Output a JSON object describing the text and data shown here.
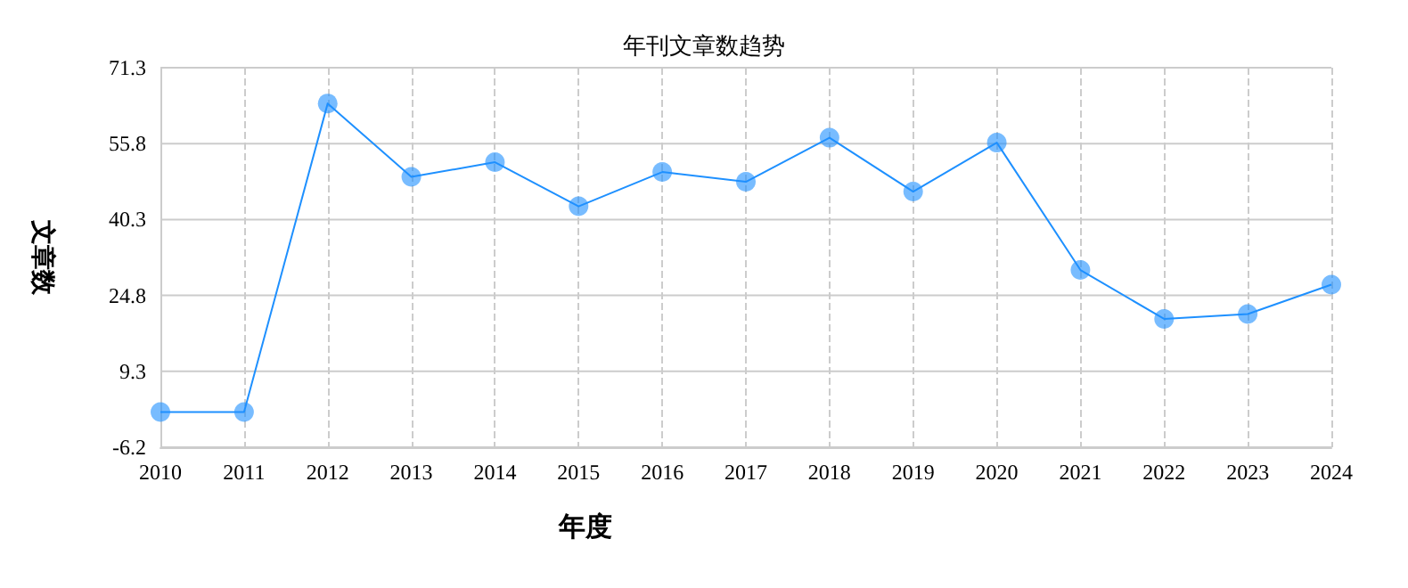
{
  "chart_data": {
    "type": "line",
    "title": "年刊文章数趋势",
    "xlabel": "年度",
    "ylabel": "文章数",
    "categories": [
      "2010",
      "2011",
      "2012",
      "2013",
      "2014",
      "2015",
      "2016",
      "2017",
      "2018",
      "2019",
      "2020",
      "2021",
      "2022",
      "2023",
      "2024"
    ],
    "series": [
      {
        "color": "#1e90ff",
        "values": [
          1,
          1,
          64,
          49,
          52,
          43,
          50,
          48,
          57,
          46,
          56,
          30,
          20,
          21,
          27
        ]
      }
    ],
    "ylim": [
      -6.2,
      71.3
    ],
    "yticks": [
      -6.2,
      9.3,
      24.8,
      40.3,
      55.8,
      71.3
    ],
    "grid": true,
    "marker": "circle",
    "line_style": "solid"
  }
}
